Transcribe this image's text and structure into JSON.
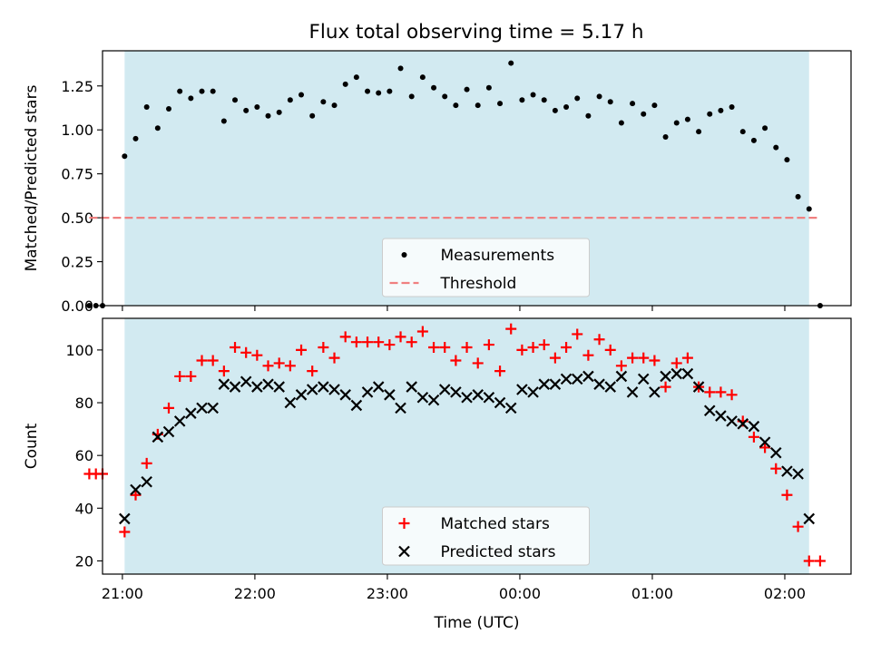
{
  "figure_title": "Flux total observing time = 5.17 h",
  "chart_data": [
    {
      "type": "scatter",
      "panel": "top",
      "title": "Flux total observing time = 5.17 h",
      "xlabel": "",
      "ylabel": "Matched/Predicted stars",
      "xlim": [
        "20:51",
        "02:30"
      ],
      "ylim": [
        0.0,
        1.45
      ],
      "yticks": [
        0.0,
        0.25,
        0.5,
        0.75,
        1.0,
        1.25
      ],
      "ytick_labels": [
        "0.00",
        "0.25",
        "0.50",
        "0.75",
        "1.00",
        "1.25"
      ],
      "xticks": [
        "21:00",
        "22:00",
        "23:00",
        "00:00",
        "01:00",
        "02:00"
      ],
      "shaded_interval": {
        "start": "21:01",
        "end": "02:11",
        "color": "#add8e6"
      },
      "legend_position": "lower center",
      "series": [
        {
          "name": "Measurements",
          "marker": "dot",
          "color": "#000000",
          "x": [
            "20:45",
            "20:48",
            "20:51",
            "21:01",
            "21:06",
            "21:11",
            "21:16",
            "21:21",
            "21:26",
            "21:31",
            "21:36",
            "21:41",
            "21:46",
            "21:51",
            "21:56",
            "22:01",
            "22:06",
            "22:11",
            "22:16",
            "22:21",
            "22:26",
            "22:31",
            "22:36",
            "22:41",
            "22:46",
            "22:51",
            "22:56",
            "23:01",
            "23:06",
            "23:11",
            "23:16",
            "23:21",
            "23:26",
            "23:31",
            "23:36",
            "23:41",
            "23:46",
            "23:51",
            "23:56",
            "00:01",
            "00:06",
            "00:11",
            "00:16",
            "00:21",
            "00:26",
            "00:31",
            "00:36",
            "00:41",
            "00:46",
            "00:51",
            "00:56",
            "01:01",
            "01:06",
            "01:11",
            "01:16",
            "01:21",
            "01:26",
            "01:31",
            "01:36",
            "01:41",
            "01:46",
            "01:51",
            "01:56",
            "02:01",
            "02:06",
            "02:11",
            "02:16"
          ],
          "y": [
            0.0,
            0.0,
            0.0,
            0.85,
            0.95,
            1.13,
            1.01,
            1.12,
            1.22,
            1.18,
            1.22,
            1.22,
            1.05,
            1.17,
            1.11,
            1.13,
            1.08,
            1.1,
            1.17,
            1.2,
            1.08,
            1.16,
            1.14,
            1.26,
            1.3,
            1.22,
            1.21,
            1.22,
            1.35,
            1.19,
            1.3,
            1.24,
            1.19,
            1.14,
            1.23,
            1.14,
            1.24,
            1.15,
            1.38,
            1.17,
            1.2,
            1.17,
            1.11,
            1.13,
            1.18,
            1.08,
            1.19,
            1.16,
            1.04,
            1.15,
            1.09,
            1.14,
            0.96,
            1.04,
            1.06,
            0.99,
            1.09,
            1.11,
            1.13,
            0.99,
            0.94,
            1.01,
            0.9,
            0.83,
            0.62,
            0.55,
            0.0
          ]
        },
        {
          "name": "Threshold",
          "style": "dashed",
          "color": "#f08080",
          "x": [
            "20:45",
            "02:16"
          ],
          "y": [
            0.5,
            0.5
          ]
        }
      ]
    },
    {
      "type": "scatter",
      "panel": "bottom",
      "xlabel": "Time (UTC)",
      "ylabel": "Count",
      "xlim": [
        "20:51",
        "02:30"
      ],
      "ylim": [
        15,
        112
      ],
      "yticks": [
        20,
        40,
        60,
        80,
        100
      ],
      "xticks": [
        "21:00",
        "22:00",
        "23:00",
        "00:00",
        "01:00",
        "02:00"
      ],
      "shaded_interval": {
        "start": "21:01",
        "end": "02:11",
        "color": "#add8e6"
      },
      "legend_position": "lower center",
      "series": [
        {
          "name": "Matched stars",
          "marker": "plus",
          "color": "#ff0000",
          "x": [
            "20:45",
            "20:48",
            "20:51",
            "21:01",
            "21:06",
            "21:11",
            "21:16",
            "21:21",
            "21:26",
            "21:31",
            "21:36",
            "21:41",
            "21:46",
            "21:51",
            "21:56",
            "22:01",
            "22:06",
            "22:11",
            "22:16",
            "22:21",
            "22:26",
            "22:31",
            "22:36",
            "22:41",
            "22:46",
            "22:51",
            "22:56",
            "23:01",
            "23:06",
            "23:11",
            "23:16",
            "23:21",
            "23:26",
            "23:31",
            "23:36",
            "23:41",
            "23:46",
            "23:51",
            "23:56",
            "00:01",
            "00:06",
            "00:11",
            "00:16",
            "00:21",
            "00:26",
            "00:31",
            "00:36",
            "00:41",
            "00:46",
            "00:51",
            "00:56",
            "01:01",
            "01:06",
            "01:11",
            "01:16",
            "01:21",
            "01:26",
            "01:31",
            "01:36",
            "01:41",
            "01:46",
            "01:51",
            "01:56",
            "02:01",
            "02:06",
            "02:11",
            "02:16"
          ],
          "y": [
            53,
            53,
            53,
            31,
            45,
            57,
            68,
            78,
            90,
            90,
            96,
            96,
            92,
            101,
            99,
            98,
            94,
            95,
            94,
            100,
            92,
            101,
            97,
            105,
            103,
            103,
            103,
            102,
            105,
            103,
            107,
            101,
            101,
            96,
            101,
            95,
            102,
            92,
            108,
            100,
            101,
            102,
            97,
            101,
            106,
            98,
            104,
            100,
            94,
            97,
            97,
            96,
            86,
            95,
            97,
            86,
            84,
            84,
            83,
            73,
            67,
            63,
            55,
            45,
            33,
            20,
            20
          ]
        },
        {
          "name": "Predicted stars",
          "marker": "x",
          "color": "#000000",
          "x": [
            "21:01",
            "21:06",
            "21:11",
            "21:16",
            "21:21",
            "21:26",
            "21:31",
            "21:36",
            "21:41",
            "21:46",
            "21:51",
            "21:56",
            "22:01",
            "22:06",
            "22:11",
            "22:16",
            "22:21",
            "22:26",
            "22:31",
            "22:36",
            "22:41",
            "22:46",
            "22:51",
            "22:56",
            "23:01",
            "23:06",
            "23:11",
            "23:16",
            "23:21",
            "23:26",
            "23:31",
            "23:36",
            "23:41",
            "23:46",
            "23:51",
            "23:56",
            "00:01",
            "00:06",
            "00:11",
            "00:16",
            "00:21",
            "00:26",
            "00:31",
            "00:36",
            "00:41",
            "00:46",
            "00:51",
            "00:56",
            "01:01",
            "01:06",
            "01:11",
            "01:16",
            "01:21",
            "01:26",
            "01:31",
            "01:36",
            "01:41",
            "01:46",
            "01:51",
            "01:56",
            "02:01",
            "02:06",
            "02:11"
          ],
          "y": [
            36,
            47,
            50,
            67,
            69,
            73,
            76,
            78,
            78,
            87,
            86,
            88,
            86,
            87,
            86,
            80,
            83,
            85,
            86,
            85,
            83,
            79,
            84,
            86,
            83,
            78,
            86,
            82,
            81,
            85,
            84,
            82,
            83,
            82,
            80,
            78,
            85,
            84,
            87,
            87,
            89,
            89,
            90,
            87,
            86,
            90,
            84,
            89,
            84,
            90,
            91,
            91,
            86,
            77,
            75,
            73,
            72,
            71,
            65,
            61,
            54,
            53,
            36
          ]
        }
      ]
    }
  ]
}
